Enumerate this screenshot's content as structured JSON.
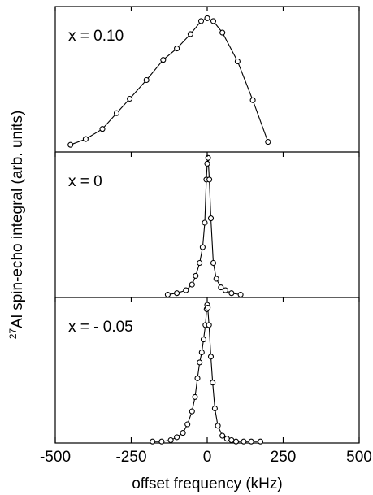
{
  "chart_data": {
    "type": "line",
    "xlabel": "offset frequency (kHz)",
    "ylabel_superscript": "27",
    "ylabel": "Al spin-echo integral (arb. units)",
    "xlim": [
      -500,
      500
    ],
    "xticks": [
      -500,
      -250,
      0,
      250,
      500
    ],
    "ylim": [
      0,
      1
    ],
    "grid": false,
    "panels": [
      {
        "label": "x = 0.10",
        "x": [
          -450,
          -400,
          -345,
          -298,
          -255,
          -200,
          -145,
          -100,
          -55,
          -20,
          0,
          20,
          50,
          100,
          150,
          200
        ],
        "y": [
          0.05,
          0.09,
          0.16,
          0.27,
          0.37,
          0.5,
          0.64,
          0.72,
          0.82,
          0.91,
          0.93,
          0.91,
          0.83,
          0.63,
          0.36,
          0.07
        ]
      },
      {
        "label": "x = 0",
        "x": [
          -130,
          -100,
          -70,
          -50,
          -38,
          -25,
          -15,
          -8,
          -3,
          0,
          3,
          7,
          12,
          20,
          30,
          45,
          60,
          80,
          110
        ],
        "y": [
          0.02,
          0.03,
          0.05,
          0.09,
          0.15,
          0.24,
          0.35,
          0.52,
          0.82,
          0.93,
          0.97,
          0.82,
          0.55,
          0.24,
          0.13,
          0.07,
          0.05,
          0.03,
          0.02
        ]
      },
      {
        "label": "x = - 0.05",
        "x": [
          -180,
          -150,
          -120,
          -100,
          -80,
          -65,
          -50,
          -40,
          -32,
          -25,
          -18,
          -12,
          -6,
          -2,
          0,
          2,
          6,
          12,
          18,
          25,
          35,
          50,
          65,
          80,
          95,
          120,
          145,
          175
        ],
        "y": [
          0.01,
          0.01,
          0.02,
          0.04,
          0.07,
          0.13,
          0.22,
          0.32,
          0.45,
          0.56,
          0.63,
          0.72,
          0.82,
          0.93,
          0.96,
          0.94,
          0.82,
          0.6,
          0.42,
          0.24,
          0.12,
          0.05,
          0.03,
          0.02,
          0.01,
          0.01,
          0.01,
          0.01
        ]
      }
    ]
  }
}
